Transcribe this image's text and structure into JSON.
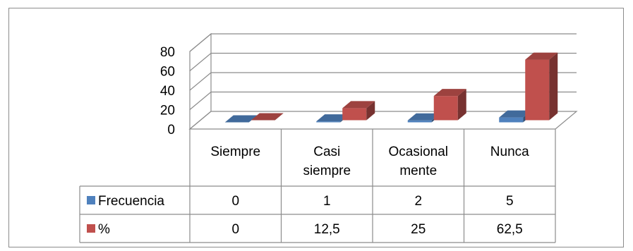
{
  "chart_data": {
    "type": "bar",
    "style": "3d-clustered-column-with-data-table",
    "title": "",
    "xlabel": "",
    "ylabel": "",
    "categories": [
      [
        "Siempre"
      ],
      [
        "Casi",
        "siempre"
      ],
      [
        "Ocasional",
        "mente"
      ],
      [
        "Nunca"
      ]
    ],
    "ylim": [
      0,
      80
    ],
    "yticks": [
      "0",
      "20",
      "40",
      "60",
      "80"
    ],
    "grid": true,
    "legend": "data-table",
    "series": [
      {
        "name": "Frecuencia",
        "values": [
          0,
          1,
          2,
          5
        ],
        "labels": [
          "0",
          "1",
          "2",
          "5"
        ],
        "color": "#4f81bd"
      },
      {
        "name": "%",
        "values": [
          0,
          12.5,
          25,
          62.5
        ],
        "labels": [
          "0",
          "12,5",
          "25",
          "62,5"
        ],
        "color": "#c0504d"
      }
    ]
  }
}
